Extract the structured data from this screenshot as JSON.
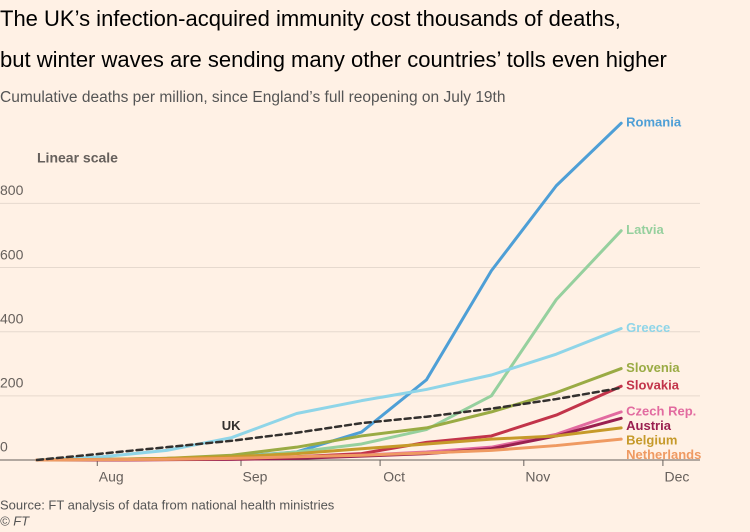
{
  "chart_data": {
    "type": "line",
    "title": [
      "The UK’s infection-acquired immunity cost thousands of deaths,",
      "but winter waves are sending many other countries’ tolls even higher"
    ],
    "subtitle": "Cumulative deaths per million, since England’s full reopening on July 19th",
    "annotation": "Linear scale",
    "source": "Source: FT analysis of data from national health ministries",
    "credit": "© FT",
    "x": [
      0,
      14,
      28,
      42,
      56,
      70,
      84,
      98,
      112,
      126
    ],
    "xlim": [
      0,
      143
    ],
    "xticks": [
      {
        "value": 13,
        "label": "Aug"
      },
      {
        "value": 44,
        "label": "Sep"
      },
      {
        "value": 74,
        "label": "Oct"
      },
      {
        "value": 105,
        "label": "Nov"
      },
      {
        "value": 135,
        "label": "Dec"
      }
    ],
    "ylim": [
      0,
      1060
    ],
    "yticks": [
      0,
      200,
      400,
      600,
      800
    ],
    "grid": true,
    "series": [
      {
        "name": "Romania",
        "color": "#4e9fd6",
        "values": [
          0,
          2,
          5,
          10,
          25,
          87,
          250,
          590,
          855,
          1050
        ]
      },
      {
        "name": "Latvia",
        "color": "#96d09e",
        "values": [
          0,
          1,
          3,
          8,
          25,
          50,
          95,
          200,
          500,
          715
        ]
      },
      {
        "name": "Greece",
        "color": "#8fd5e8",
        "values": [
          0,
          10,
          30,
          70,
          145,
          185,
          220,
          265,
          330,
          410
        ]
      },
      {
        "name": "Slovenia",
        "color": "#9aab44",
        "values": [
          0,
          1,
          5,
          15,
          40,
          75,
          100,
          150,
          210,
          285
        ]
      },
      {
        "name": "Slovakia",
        "color": "#c2344a",
        "values": [
          0,
          0,
          2,
          5,
          10,
          20,
          55,
          75,
          140,
          230
        ]
      },
      {
        "name": "Czech Rep.",
        "color": "#e26ba0",
        "values": [
          0,
          0,
          1,
          3,
          8,
          15,
          25,
          40,
          80,
          150
        ]
      },
      {
        "name": "Austria",
        "color": "#9a2050",
        "values": [
          0,
          0,
          1,
          2,
          5,
          12,
          20,
          35,
          75,
          130
        ]
      },
      {
        "name": "Belgium",
        "color": "#c69a2a",
        "values": [
          0,
          2,
          5,
          10,
          20,
          35,
          50,
          65,
          75,
          100
        ]
      },
      {
        "name": "Netherlands",
        "color": "#ef9a62",
        "values": [
          0,
          1,
          2,
          5,
          10,
          15,
          22,
          30,
          45,
          65
        ]
      },
      {
        "name": "UK",
        "color": "#33302e",
        "dashed": true,
        "values": [
          0,
          20,
          40,
          60,
          85,
          115,
          135,
          160,
          190,
          225
        ]
      }
    ]
  }
}
